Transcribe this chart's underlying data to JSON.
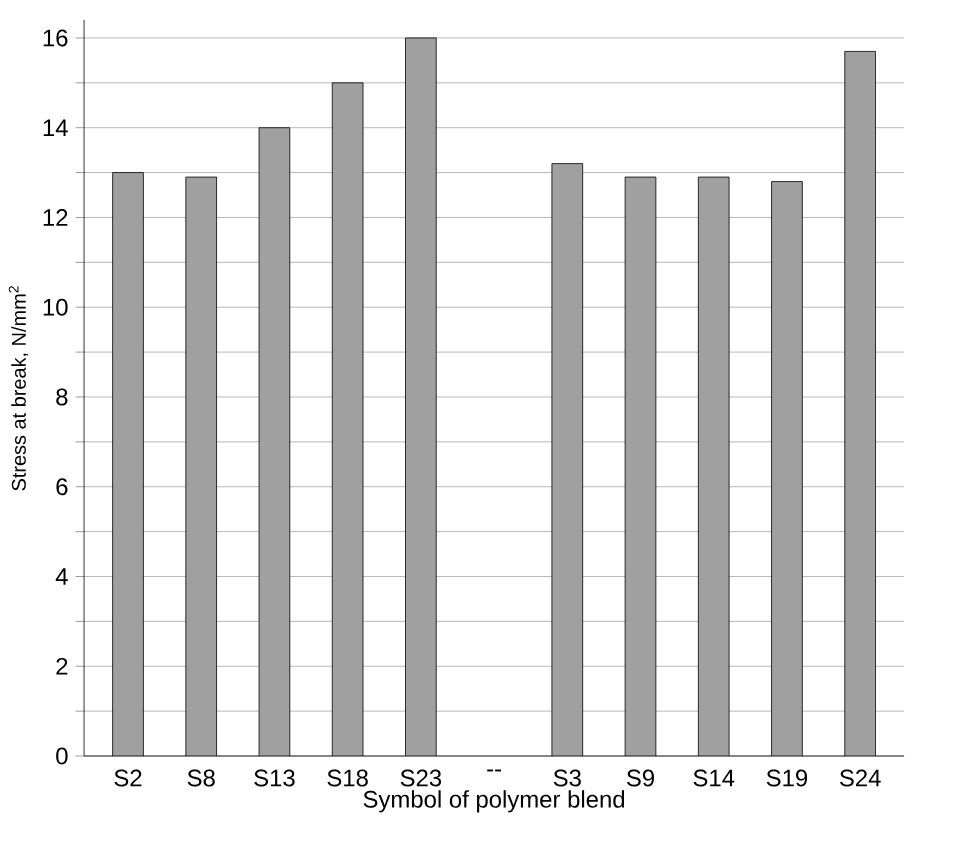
{
  "chart_data": {
    "type": "bar",
    "xlabel": "Symbol of polymer blend",
    "ylabel": "Stress at break, N/mm$^{2}$",
    "categories": [
      "S2",
      "S8",
      "S13",
      "S18",
      "S23",
      "--",
      "S3",
      "S9",
      "S14",
      "S19",
      "S24"
    ],
    "values": [
      13,
      12.9,
      14,
      15,
      16,
      null,
      13.2,
      12.9,
      12.9,
      12.8,
      15.7
    ],
    "color": "#a0a0a0",
    "ylim": [
      0,
      16.4
    ],
    "yticks": [
      0,
      {
        "value": 1,
        "label": null
      },
      2,
      {
        "value": 3,
        "label": null
      },
      4,
      {
        "value": 5,
        "label": null
      },
      6,
      {
        "value": 7,
        "label": null
      },
      8,
      {
        "value": 9,
        "label": null
      },
      10,
      {
        "value": 11,
        "label": null
      },
      12,
      {
        "value": 13,
        "label": null
      },
      14,
      {
        "value": 15,
        "label": null
      },
      16
    ],
    "grid": "y"
  }
}
